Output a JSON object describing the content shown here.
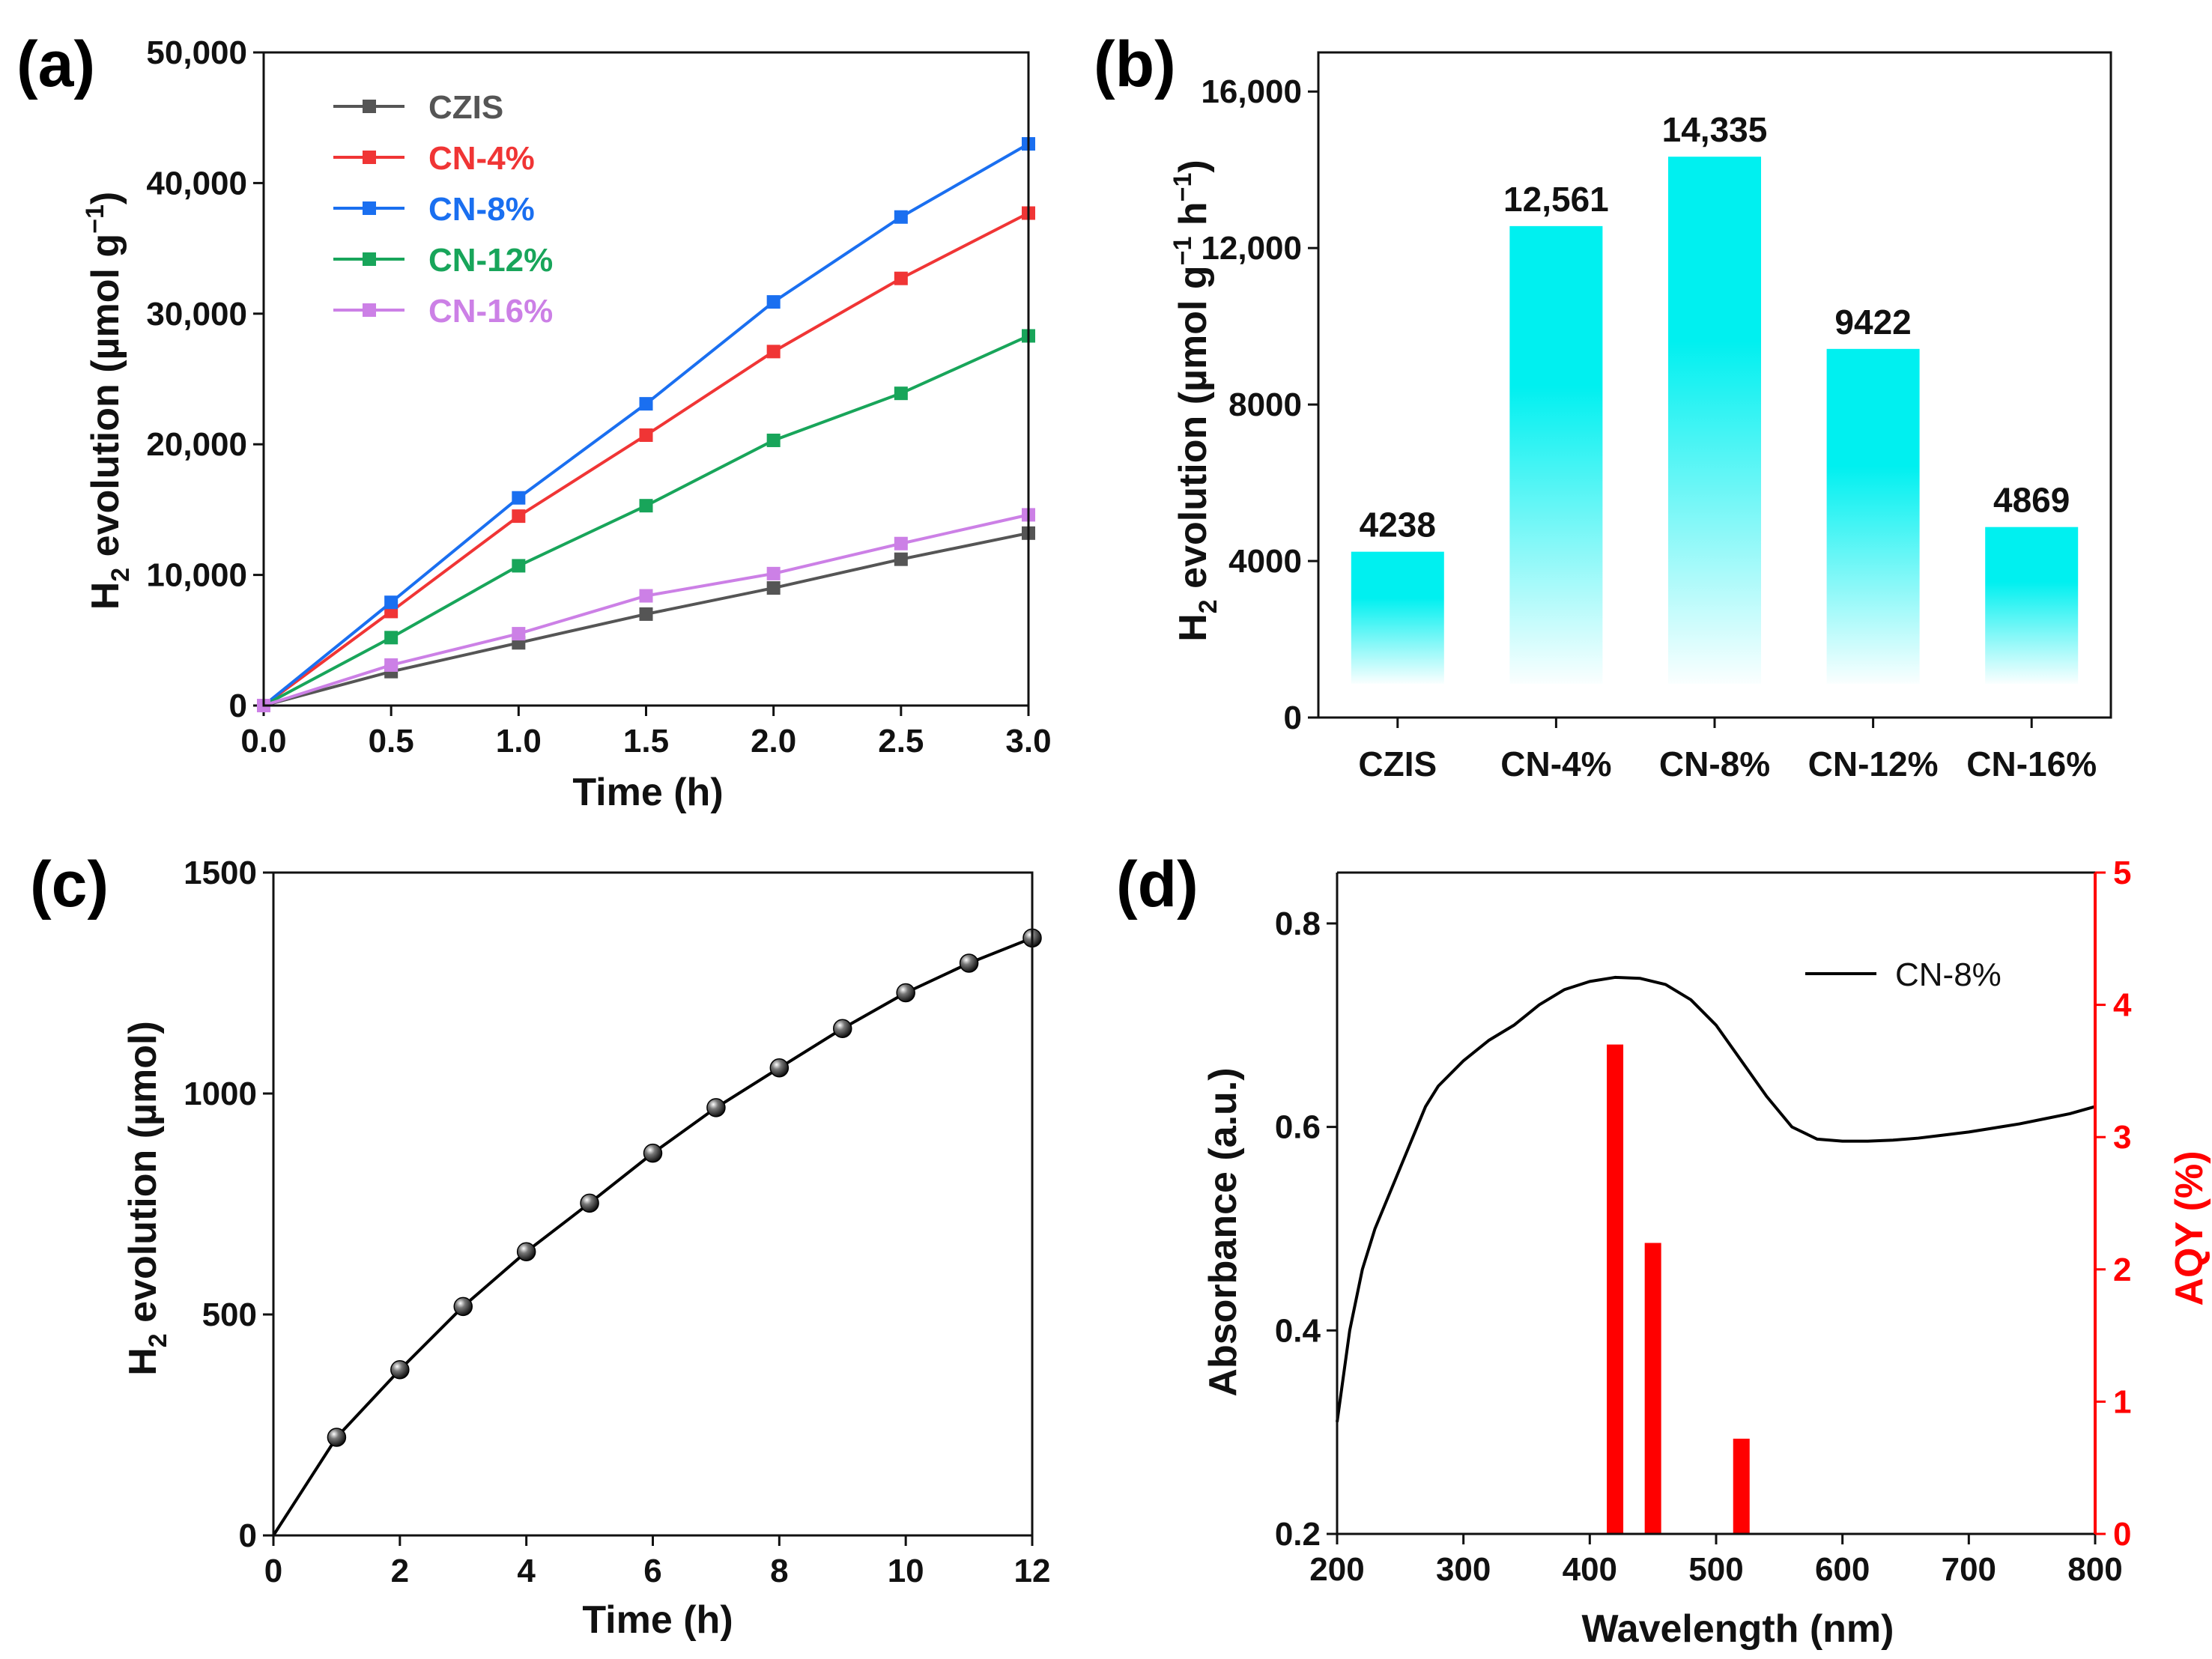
{
  "panel_labels": [
    "(a)",
    "(b)",
    "(c)",
    "(d)"
  ],
  "chart_data": [
    {
      "panel": "(a)",
      "type": "line",
      "xlabel": "Time (h)",
      "ylabel_main": "H",
      "ylabel_sub": "2",
      "ylabel_rest": " evolution (µmol g",
      "ylabel_sup": "−1",
      "ylabel_end": ")",
      "xlim": [
        0,
        3
      ],
      "ylim": [
        0,
        50000
      ],
      "xticks": [
        0.0,
        0.5,
        1.0,
        1.5,
        2.0,
        2.5,
        3.0
      ],
      "xtick_labels": [
        "0.0",
        "0.5",
        "1.0",
        "1.5",
        "2.0",
        "2.5",
        "3.0"
      ],
      "yticks": [
        0,
        10000,
        20000,
        30000,
        40000,
        50000
      ],
      "ytick_labels": [
        "0",
        "10,000",
        "20,000",
        "30,000",
        "40,000",
        "50,000"
      ],
      "x": [
        0,
        0.5,
        1.0,
        1.5,
        2.0,
        2.5,
        3.0
      ],
      "series": [
        {
          "name": "CZIS",
          "color": "#555555",
          "values": [
            0,
            2600,
            4800,
            7000,
            9000,
            11200,
            13200
          ]
        },
        {
          "name": "CN-4%",
          "color": "#f03535",
          "values": [
            0,
            7200,
            14500,
            20700,
            27100,
            32700,
            37700
          ]
        },
        {
          "name": "CN-8%",
          "color": "#1a6ff0",
          "values": [
            0,
            7900,
            15900,
            23100,
            30900,
            37400,
            43000
          ]
        },
        {
          "name": "CN-12%",
          "color": "#18a55a",
          "values": [
            0,
            5200,
            10700,
            15300,
            20300,
            23900,
            28300
          ]
        },
        {
          "name": "CN-16%",
          "color": "#cc80e6",
          "values": [
            0,
            3100,
            5500,
            8400,
            10100,
            12400,
            14600
          ]
        }
      ],
      "legend_location": "top-left"
    },
    {
      "panel": "(b)",
      "type": "bar",
      "ylabel_main": "H",
      "ylabel_sub": "2",
      "ylabel_rest": " evolution (µmol g",
      "ylabel_sup1": "−1",
      "ylabel_mid": " h",
      "ylabel_sup2": "−1",
      "ylabel_end": ")",
      "categories": [
        "CZIS",
        "CN-4%",
        "CN-8%",
        "CN-12%",
        "CN-16%"
      ],
      "values": [
        4238,
        12561,
        14335,
        9422,
        4869
      ],
      "value_labels": [
        "4238",
        "12,561",
        "14,335",
        "9422",
        "4869"
      ],
      "ylim": [
        0,
        17000
      ],
      "yticks": [
        0,
        4000,
        8000,
        12000,
        16000
      ],
      "ytick_labels": [
        "0",
        "4000",
        "8000",
        "12,000",
        "16,000"
      ],
      "bar_color": "#00f0f0"
    },
    {
      "panel": "(c)",
      "type": "line",
      "xlabel": "Time (h)",
      "ylabel_main": "H",
      "ylabel_sub": "2",
      "ylabel_rest": " evolution (µmol)",
      "xlim": [
        0,
        12
      ],
      "ylim": [
        0,
        1500
      ],
      "xticks": [
        0,
        2,
        4,
        6,
        8,
        10,
        12
      ],
      "xtick_labels": [
        "0",
        "2",
        "4",
        "6",
        "8",
        "10",
        "12"
      ],
      "yticks": [
        0,
        500,
        1000,
        1500
      ],
      "ytick_labels": [
        "0",
        "500",
        "1000",
        "1500"
      ],
      "x": [
        0,
        1,
        2,
        3,
        4,
        5,
        6,
        7,
        8,
        9,
        10,
        11,
        12
      ],
      "values": [
        0,
        222,
        375,
        518,
        642,
        752,
        865,
        968,
        1058,
        1147,
        1228,
        1295,
        1352
      ],
      "color": "#000000"
    },
    {
      "panel": "(d)",
      "type": "line+bar",
      "xlabel": "Wavelength (nm)",
      "ylabel_left": "Absorbance (a.u.)",
      "ylabel_right": "AQY (%)",
      "xlim": [
        200,
        800
      ],
      "ylim_left": [
        0.2,
        0.85
      ],
      "ylim_right": [
        0,
        5
      ],
      "xticks": [
        200,
        300,
        400,
        500,
        600,
        700,
        800
      ],
      "xtick_labels": [
        "200",
        "300",
        "400",
        "500",
        "600",
        "700",
        "800"
      ],
      "yticks_left": [
        0.2,
        0.4,
        0.6,
        0.8
      ],
      "ytick_labels_left": [
        "0.2",
        "0.4",
        "0.6",
        "0.8"
      ],
      "yticks_right": [
        0,
        1,
        2,
        3,
        4,
        5
      ],
      "ytick_labels_right": [
        "0",
        "1",
        "2",
        "3",
        "4",
        "5"
      ],
      "absorbance": {
        "name": "CN-8%",
        "color": "#000000",
        "x": [
          200,
          210,
          220,
          230,
          240,
          250,
          260,
          270,
          280,
          300,
          320,
          340,
          360,
          380,
          400,
          420,
          440,
          460,
          480,
          500,
          520,
          540,
          560,
          580,
          600,
          620,
          640,
          660,
          680,
          700,
          720,
          740,
          760,
          780,
          800
        ],
        "y": [
          0.31,
          0.4,
          0.46,
          0.5,
          0.53,
          0.56,
          0.59,
          0.62,
          0.64,
          0.665,
          0.685,
          0.7,
          0.72,
          0.735,
          0.743,
          0.747,
          0.746,
          0.74,
          0.725,
          0.7,
          0.665,
          0.63,
          0.6,
          0.588,
          0.586,
          0.586,
          0.587,
          0.589,
          0.592,
          0.595,
          0.599,
          0.603,
          0.608,
          0.613,
          0.62
        ]
      },
      "aqy": {
        "color": "#ff0000",
        "wavelengths": [
          420,
          450,
          520
        ],
        "values": [
          3.7,
          2.2,
          0.72
        ]
      },
      "legend_location": "top-right"
    }
  ]
}
